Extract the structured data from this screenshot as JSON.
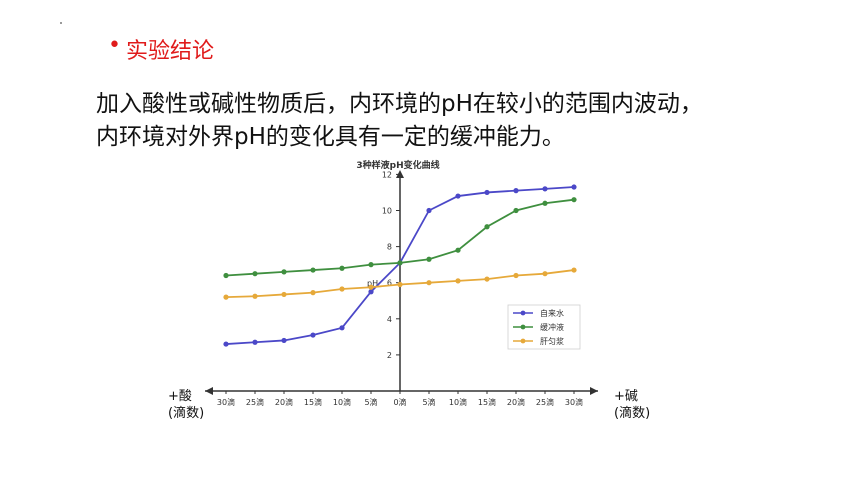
{
  "slide": {
    "bullet": "•",
    "heading": "实验结论",
    "conclusion_lines": [
      "加入酸性或碱性物质后，内环境的pH在较小的范围内波动，",
      "内环境对外界pH的变化具有一定的缓冲能力。"
    ],
    "left_axis_label": [
      "+酸",
      "(滴数)"
    ],
    "right_axis_label": [
      "+碱",
      "(滴数)"
    ]
  },
  "chart_data": {
    "type": "line",
    "title": "3种样液pH变化曲线",
    "ylabel": "pH",
    "categories": [
      "30滴",
      "25滴",
      "20滴",
      "15滴",
      "10滴",
      "5滴",
      "0滴",
      "5滴",
      "10滴",
      "15滴",
      "20滴",
      "25滴",
      "30滴"
    ],
    "yticks": [
      2,
      4,
      6,
      8,
      10,
      12
    ],
    "ylim": [
      0,
      12
    ],
    "grid": false,
    "legend_position": "lower-right",
    "series": [
      {
        "name": "自来水",
        "color": "#4b48c8",
        "values": [
          2.6,
          2.7,
          2.8,
          3.1,
          3.5,
          5.5,
          7.1,
          10.0,
          10.8,
          11.0,
          11.1,
          11.2,
          11.3
        ]
      },
      {
        "name": "缓冲液",
        "color": "#3f8f3f",
        "values": [
          6.4,
          6.5,
          6.6,
          6.7,
          6.8,
          7.0,
          7.1,
          7.3,
          7.8,
          9.1,
          10.0,
          10.4,
          10.6
        ]
      },
      {
        "name": "肝匀浆",
        "color": "#e6a93a",
        "values": [
          5.2,
          5.25,
          5.35,
          5.45,
          5.65,
          5.75,
          5.9,
          6.0,
          6.1,
          6.2,
          6.4,
          6.5,
          6.7
        ]
      }
    ]
  }
}
